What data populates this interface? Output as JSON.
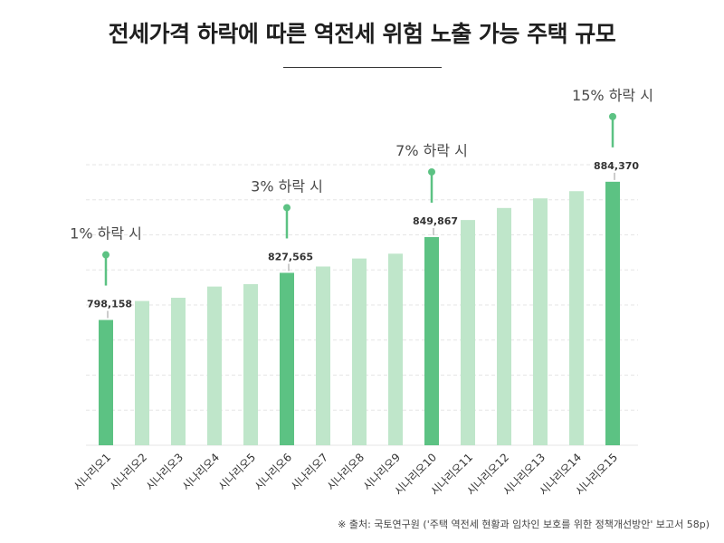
{
  "title": "전세가격 하락에 따른 역전세 위험 노출 가능 주택 규모",
  "source": "※ 출처: 국토연구원 ('주택 역전세 현황과 임차인 보호를 위한 정책개선방안' 보고서 58p)",
  "colors": {
    "highlight": "#5cc283",
    "normal": "#bfe6ca",
    "grid": "#e6e6e6",
    "label": "#4a4a4a"
  },
  "chart_data": {
    "type": "bar",
    "title": "전세가격 하락에 따른 역전세 위험 노출 가능 주택 규모",
    "xlabel": "",
    "ylabel": "",
    "ylim": [
      720000,
      895000
    ],
    "grid": true,
    "categories": [
      "시나리오1",
      "시나리오2",
      "시나리오3",
      "시나리오4",
      "시나리오5",
      "시나리오6",
      "시나리오7",
      "시나리오8",
      "시나리오9",
      "시나리오10",
      "시나리오11",
      "시나리오12",
      "시나리오13",
      "시나리오14",
      "시나리오15"
    ],
    "values": [
      798158,
      810000,
      812000,
      819000,
      820500,
      827565,
      831500,
      836500,
      839500,
      849867,
      860500,
      868000,
      874000,
      878500,
      884370
    ],
    "highlighted": [
      0,
      5,
      9,
      14
    ],
    "data_labels": {
      "0": "798,158",
      "5": "827,565",
      "9": "849,867",
      "14": "884,370"
    },
    "annotations": [
      {
        "index": 0,
        "text": "1% 하락 시"
      },
      {
        "index": 5,
        "text": "3% 하락 시"
      },
      {
        "index": 9,
        "text": "7% 하락 시"
      },
      {
        "index": 14,
        "text": "15% 하락 시"
      }
    ]
  }
}
